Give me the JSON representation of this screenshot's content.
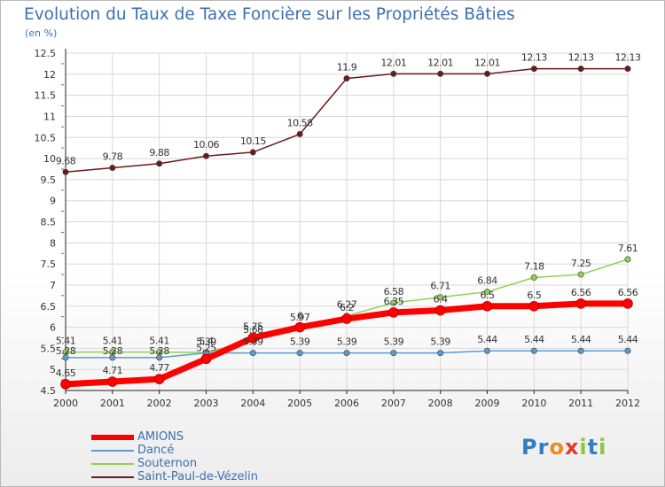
{
  "title": "Evolution du Taux de Taxe Foncière sur les Propriétés Bâties",
  "unit_label": "(en %)",
  "logo": {
    "text": "Proxiti",
    "letters": [
      "P",
      "r",
      "o",
      "x",
      "i",
      "t",
      "i"
    ],
    "colors": [
      "#2f7ec4",
      "#2f7ec4",
      "#f08a1e",
      "#e03b2f",
      "#8cc63f",
      "#2f7ec4",
      "#8cc63f"
    ]
  },
  "colors": {
    "grid": "#d8d8d8",
    "axis": "#222222",
    "label": "#333333"
  },
  "chart_data": {
    "type": "line",
    "title": "Evolution du Taux de Taxe Foncière sur les Propriétés Bâties",
    "ylabel": "(en %)",
    "xlabel": "",
    "ylim": [
      4.5,
      12.5
    ],
    "y_step": 0.5,
    "yticks": [
      "4.5",
      "5",
      "5.5",
      "6",
      "6.5",
      "7",
      "7.5",
      "8",
      "8.5",
      "9",
      "9.5",
      "10",
      "10.5",
      "11",
      "11.5",
      "12",
      "12.5"
    ],
    "categories": [
      "2000",
      "2001",
      "2002",
      "2003",
      "2004",
      "2005",
      "2006",
      "2007",
      "2008",
      "2009",
      "2010",
      "2011",
      "2012"
    ],
    "legend_position": "bottom-left",
    "series": [
      {
        "name": "AMIONS",
        "color": "#ff0000",
        "thick": true,
        "values": [
          4.65,
          4.71,
          4.77,
          5.25,
          5.75,
          6.0,
          6.2,
          6.35,
          6.4,
          6.5,
          6.5,
          6.56,
          6.56
        ],
        "labels": [
          "4.65",
          "4.71",
          "4.77",
          "5.25",
          "5.75",
          "6",
          "6.2",
          "6.35",
          "6.4",
          "6.5",
          "6.5",
          "6.56",
          "6.56"
        ]
      },
      {
        "name": "Dancé",
        "color": "#5b9bd5",
        "thick": false,
        "values": [
          5.28,
          5.28,
          5.28,
          5.39,
          5.39,
          5.39,
          5.39,
          5.39,
          5.39,
          5.44,
          5.44,
          5.44,
          5.44
        ],
        "labels": [
          "5.28",
          "5.28",
          "5.28",
          "5.39",
          "5.39",
          "5.39",
          "5.39",
          "5.39",
          "5.39",
          "5.44",
          "5.44",
          "5.44",
          "5.44"
        ]
      },
      {
        "name": "Souternon",
        "color": "#8fd14f",
        "thick": false,
        "values": [
          5.41,
          5.41,
          5.41,
          5.4,
          5.68,
          5.97,
          6.27,
          6.58,
          6.71,
          6.84,
          7.18,
          7.25,
          7.61
        ],
        "labels": [
          "5.41",
          "5.41",
          "5.41",
          "5.4",
          "5.68",
          "5.97",
          "6.27",
          "6.58",
          "6.71",
          "6.84",
          "7.18",
          "7.25",
          "7.61"
        ]
      },
      {
        "name": "Saint-Paul-de-Vézelin",
        "color": "#6b1a1a",
        "thick": false,
        "values": [
          9.68,
          9.78,
          9.88,
          10.06,
          10.15,
          10.58,
          11.9,
          12.01,
          12.01,
          12.01,
          12.13,
          12.13,
          12.13
        ],
        "labels": [
          "9.68",
          "9.78",
          "9.88",
          "10.06",
          "10.15",
          "10.58",
          "11.9",
          "12.01",
          "12.01",
          "12.01",
          "12.13",
          "12.13",
          "12.13"
        ]
      }
    ]
  }
}
